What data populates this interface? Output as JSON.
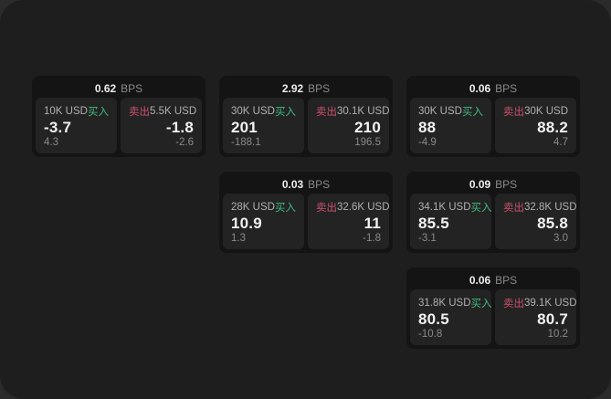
{
  "colors": {
    "window_bg": "#1e1e1e",
    "card_bg": "#141414",
    "panel_bg": "#232323",
    "buy_green": "#3fbc81",
    "sell_red": "#c9516b"
  },
  "cards": [
    {
      "row": 1,
      "col": 1,
      "spread": "0.62",
      "unit": "BPS",
      "buy": {
        "amount": "10K USD",
        "label": "买入",
        "price": "-3.7",
        "delta": "4.3"
      },
      "sell": {
        "label": "卖出",
        "amount": "5.5K USD",
        "price": "-1.8",
        "delta": "-2.6"
      }
    },
    {
      "row": 1,
      "col": 2,
      "spread": "2.92",
      "unit": "BPS",
      "buy": {
        "amount": "30K USD",
        "label": "买入",
        "price": "201",
        "delta": "-188.1"
      },
      "sell": {
        "label": "卖出",
        "amount": "30.1K USD",
        "price": "210",
        "delta": "196.5"
      }
    },
    {
      "row": 1,
      "col": 3,
      "spread": "0.06",
      "unit": "BPS",
      "buy": {
        "amount": "30K USD",
        "label": "买入",
        "price": "88",
        "delta": "-4.9"
      },
      "sell": {
        "label": "卖出",
        "amount": "30K USD",
        "price": "88.2",
        "delta": "4.7"
      }
    },
    {
      "row": 2,
      "col": 2,
      "spread": "0.03",
      "unit": "BPS",
      "buy": {
        "amount": "28K USD",
        "label": "买入",
        "price": "10.9",
        "delta": "1.3"
      },
      "sell": {
        "label": "卖出",
        "amount": "32.6K USD",
        "price": "11",
        "delta": "-1.8"
      }
    },
    {
      "row": 2,
      "col": 3,
      "spread": "0.09",
      "unit": "BPS",
      "buy": {
        "amount": "34.1K USD",
        "label": "买入",
        "price": "85.5",
        "delta": "-3.1"
      },
      "sell": {
        "label": "卖出",
        "amount": "32.8K USD",
        "price": "85.8",
        "delta": "3.0"
      }
    },
    {
      "row": 3,
      "col": 3,
      "spread": "0.06",
      "unit": "BPS",
      "buy": {
        "amount": "31.8K USD",
        "label": "买入",
        "price": "80.5",
        "delta": "-10.8"
      },
      "sell": {
        "label": "卖出",
        "amount": "39.1K USD",
        "price": "80.7",
        "delta": "10.2"
      }
    }
  ]
}
